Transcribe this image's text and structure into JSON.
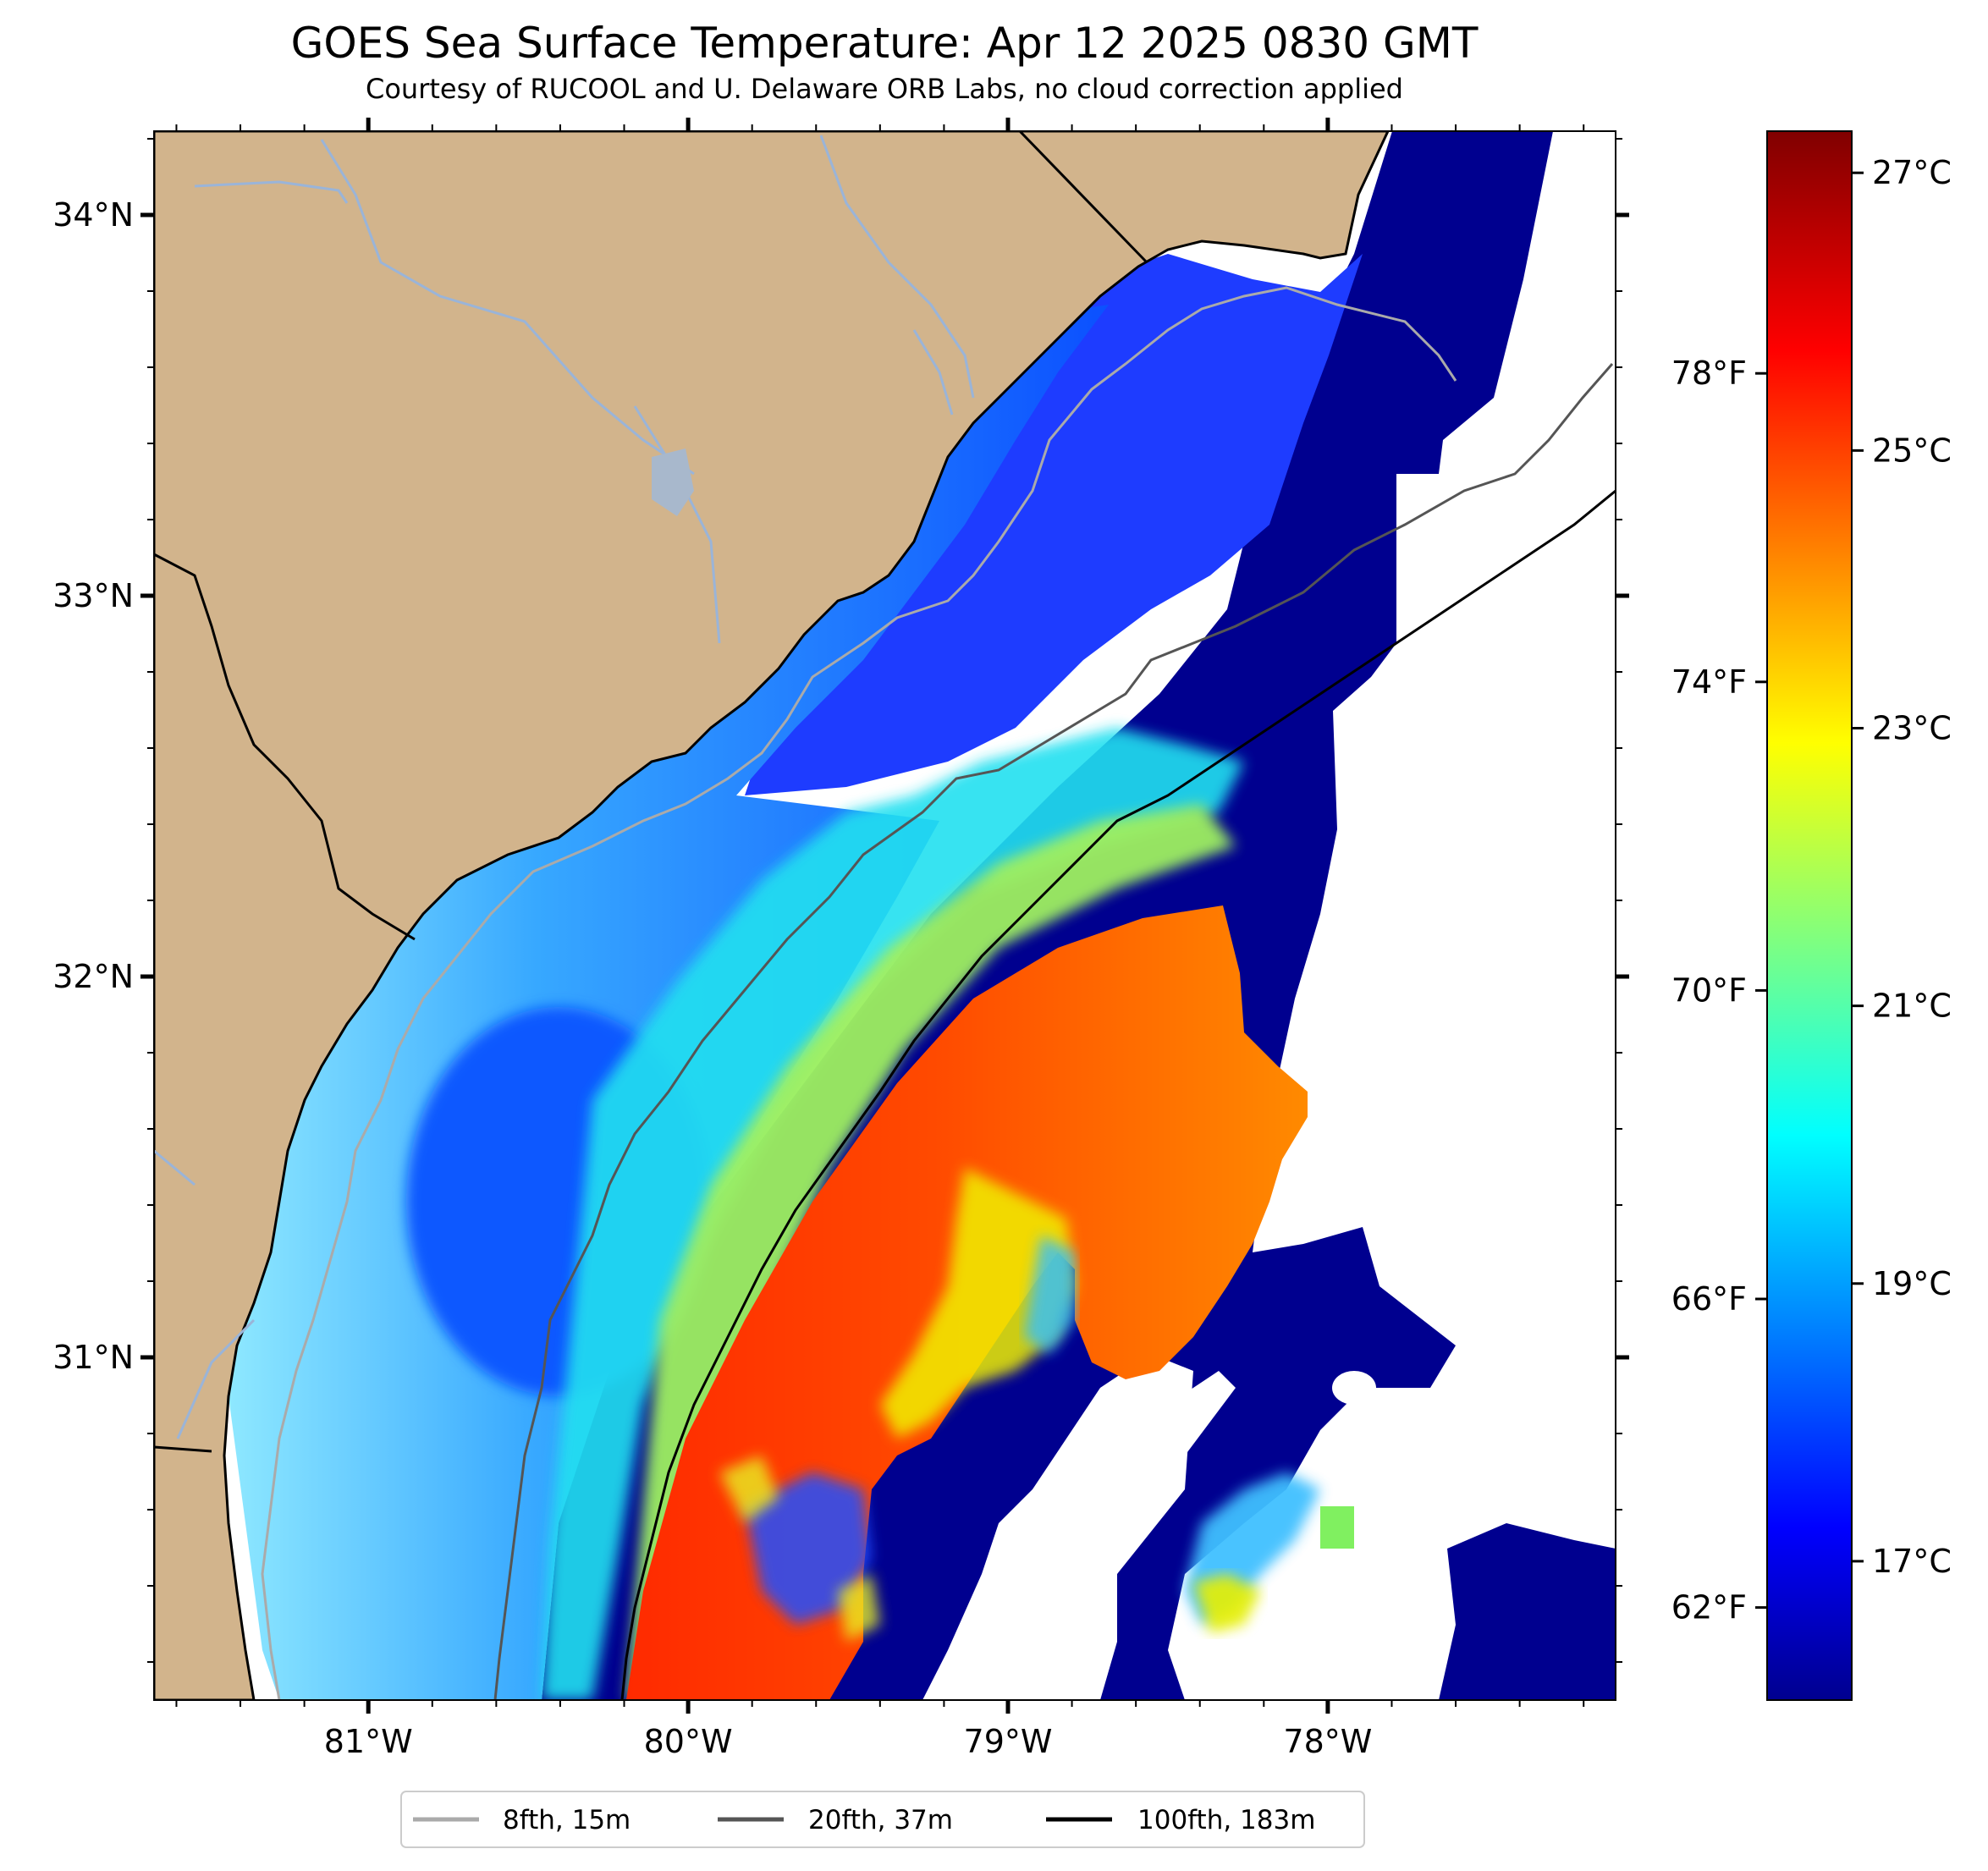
{
  "title": "GOES Sea Surface Temperature: Apr 12 2025 0830 GMT",
  "subtitle": "Courtesy of RUCOOL and U. Delaware ORB Labs, no cloud correction applied",
  "map": {
    "lon_range": [
      -81.67,
      -77.1
    ],
    "lat_range": [
      30.1,
      34.22
    ],
    "lon_ticks": [
      {
        "value": -81,
        "label": "81°W"
      },
      {
        "value": -80,
        "label": "80°W"
      },
      {
        "value": -79,
        "label": "79°W"
      },
      {
        "value": -78,
        "label": "78°W"
      }
    ],
    "lat_ticks": [
      {
        "value": 34,
        "label": "34°N"
      },
      {
        "value": 33,
        "label": "33°N"
      },
      {
        "value": 32,
        "label": "32°N"
      },
      {
        "value": 31,
        "label": "31°N"
      }
    ],
    "land_color": "#d2b48c",
    "no_data_color": "#ffffff"
  },
  "colorbar": {
    "celsius_range": [
      16.0,
      27.3
    ],
    "celsius_ticks": [
      {
        "value": 17,
        "label": "17°C"
      },
      {
        "value": 19,
        "label": "19°C"
      },
      {
        "value": 21,
        "label": "21°C"
      },
      {
        "value": 23,
        "label": "23°C"
      },
      {
        "value": 25,
        "label": "25°C"
      },
      {
        "value": 27,
        "label": "27°C"
      }
    ],
    "fahrenheit_ticks": [
      {
        "value": 62,
        "label": "62°F"
      },
      {
        "value": 66,
        "label": "66°F"
      },
      {
        "value": 70,
        "label": "70°F"
      },
      {
        "value": 74,
        "label": "74°F"
      },
      {
        "value": 78,
        "label": "78°F"
      }
    ],
    "colormap": "jet"
  },
  "legend": {
    "position": "bottom-center",
    "items": [
      {
        "label": "8fth, 15m",
        "color": "#aaaaaa"
      },
      {
        "label": "20fth, 37m",
        "color": "#555555"
      },
      {
        "label": "100fth, 183m",
        "color": "#000000"
      }
    ]
  }
}
